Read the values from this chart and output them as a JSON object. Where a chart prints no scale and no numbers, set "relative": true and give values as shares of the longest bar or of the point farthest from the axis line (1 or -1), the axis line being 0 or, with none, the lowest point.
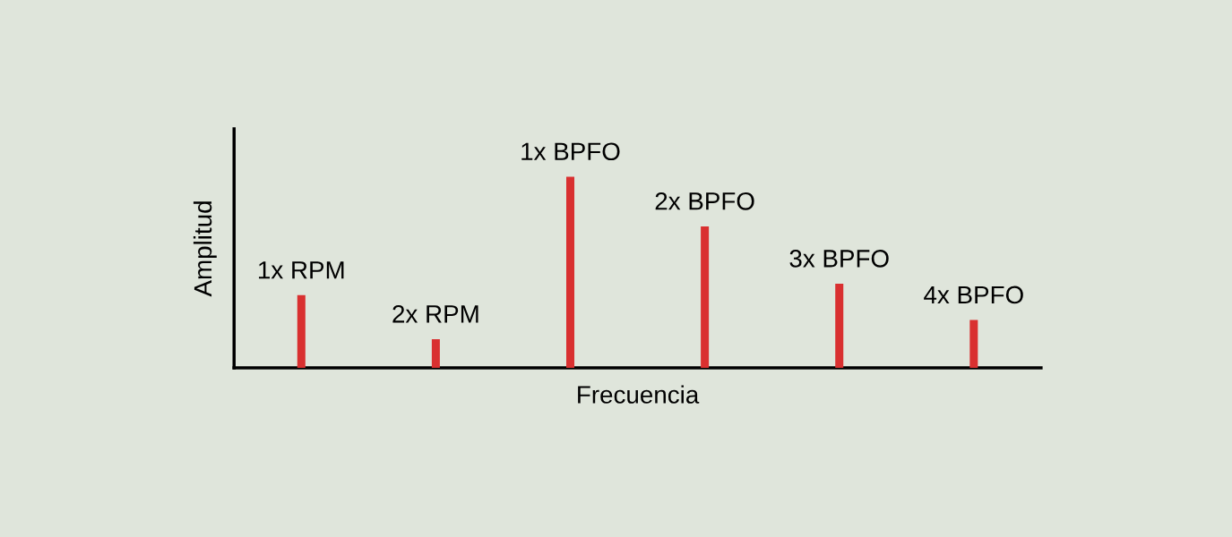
{
  "chart_data": {
    "type": "bar",
    "relative": true,
    "xlabel": "Frecuencia",
    "ylabel": "Amplitud",
    "categories": [
      "1x RPM",
      "2x RPM",
      "1x BPFO",
      "2x BPFO",
      "3x BPFO",
      "4x BPFO"
    ],
    "values": [
      0.38,
      0.15,
      1,
      0.74,
      0.44,
      0.25
    ],
    "color": "#d93030"
  }
}
